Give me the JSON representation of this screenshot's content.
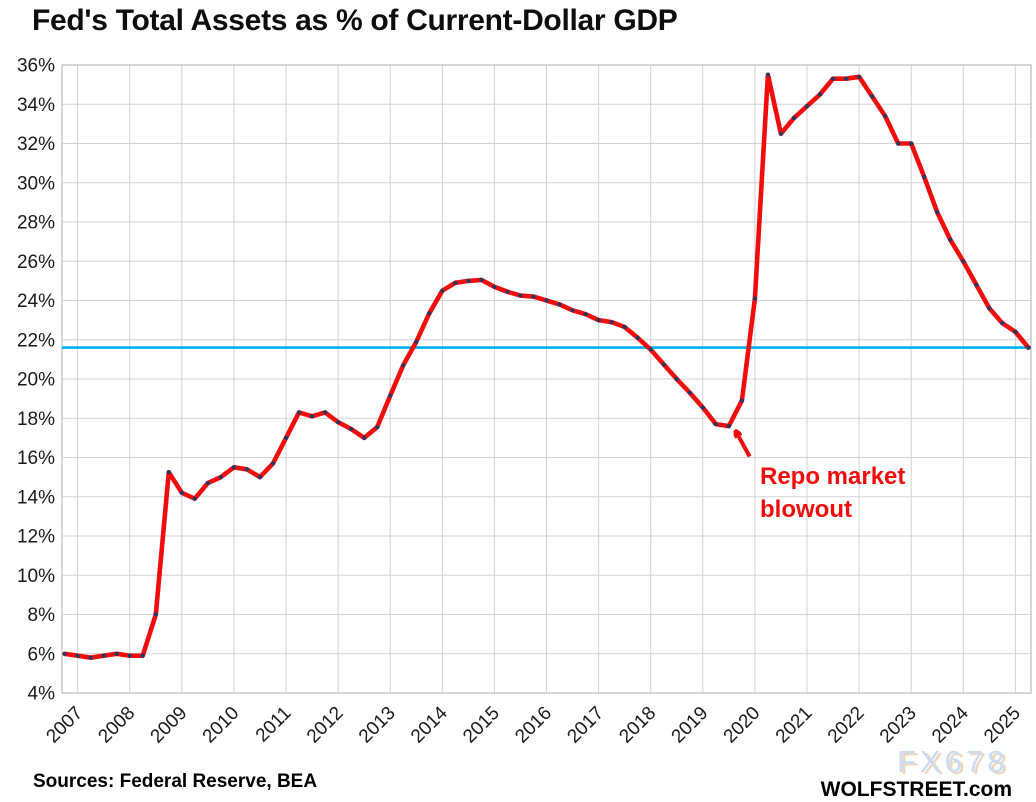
{
  "header": {
    "title": "Fed's Total Assets as % of Current-Dollar GDP"
  },
  "footer": {
    "sources": "Sources: Federal Reserve, BEA",
    "branding": "WOLFSTREET.com",
    "watermark": "FX678"
  },
  "chart_data": {
    "type": "line",
    "title": "Fed's Total Assets as % of Current-Dollar GDP",
    "xlabel": "",
    "ylabel": "",
    "x_unit": "quarterly",
    "x_start": 2006.75,
    "x_step": 0.25,
    "values": [
      6.0,
      5.9,
      5.8,
      5.9,
      6.0,
      5.9,
      5.9,
      8.0,
      15.25,
      14.2,
      13.9,
      14.7,
      15.0,
      15.5,
      15.4,
      15.0,
      15.7,
      17.0,
      18.3,
      18.1,
      18.3,
      17.8,
      17.45,
      17.0,
      17.55,
      19.15,
      20.7,
      21.9,
      23.35,
      24.5,
      24.9,
      25.0,
      25.05,
      24.7,
      24.45,
      24.25,
      24.2,
      24.0,
      23.8,
      23.5,
      23.3,
      23.0,
      22.9,
      22.65,
      22.1,
      21.5,
      20.75,
      20.0,
      19.3,
      18.55,
      17.7,
      17.6,
      18.9,
      24.1,
      35.5,
      32.5,
      33.3,
      33.9,
      34.5,
      35.3,
      35.3,
      35.4,
      34.4,
      33.4,
      32.0,
      32.0,
      30.3,
      28.5,
      27.1,
      26.0,
      24.8,
      23.6,
      22.85,
      22.4,
      21.6
    ],
    "series_color": "#f20d0d",
    "marker_color": "#1f3864",
    "reference_line": {
      "value": 21.6,
      "color": "#00b0f0"
    },
    "annotation": {
      "line1": "Repo market",
      "line2": "blowout",
      "color": "#f20d0d",
      "arrow_from": [
        2019.9,
        16.05
      ],
      "arrow_to": [
        2019.63,
        17.35
      ]
    },
    "x_tick_labels": [
      "2007",
      "2008",
      "2009",
      "2010",
      "2011",
      "2012",
      "2013",
      "2014",
      "2015",
      "2016",
      "2017",
      "2018",
      "2019",
      "2020",
      "2021",
      "2022",
      "2023",
      "2024",
      "2025"
    ],
    "y_tick_labels": [
      "4%",
      "6%",
      "8%",
      "10%",
      "12%",
      "14%",
      "16%",
      "18%",
      "20%",
      "22%",
      "24%",
      "26%",
      "28%",
      "30%",
      "32%",
      "34%",
      "36%"
    ],
    "y_tick_values": [
      4,
      6,
      8,
      10,
      12,
      14,
      16,
      18,
      20,
      22,
      24,
      26,
      28,
      30,
      32,
      34,
      36
    ],
    "xlim": [
      2006.7,
      2025.3
    ],
    "ylim": [
      4,
      36
    ],
    "grid": true,
    "grid_color": "#d2d2d2",
    "border_color": "#bfbfbf",
    "legend": "none",
    "watermark_color": "#c3d7ee",
    "watermark_shadow_color": "#e9d1b7"
  }
}
